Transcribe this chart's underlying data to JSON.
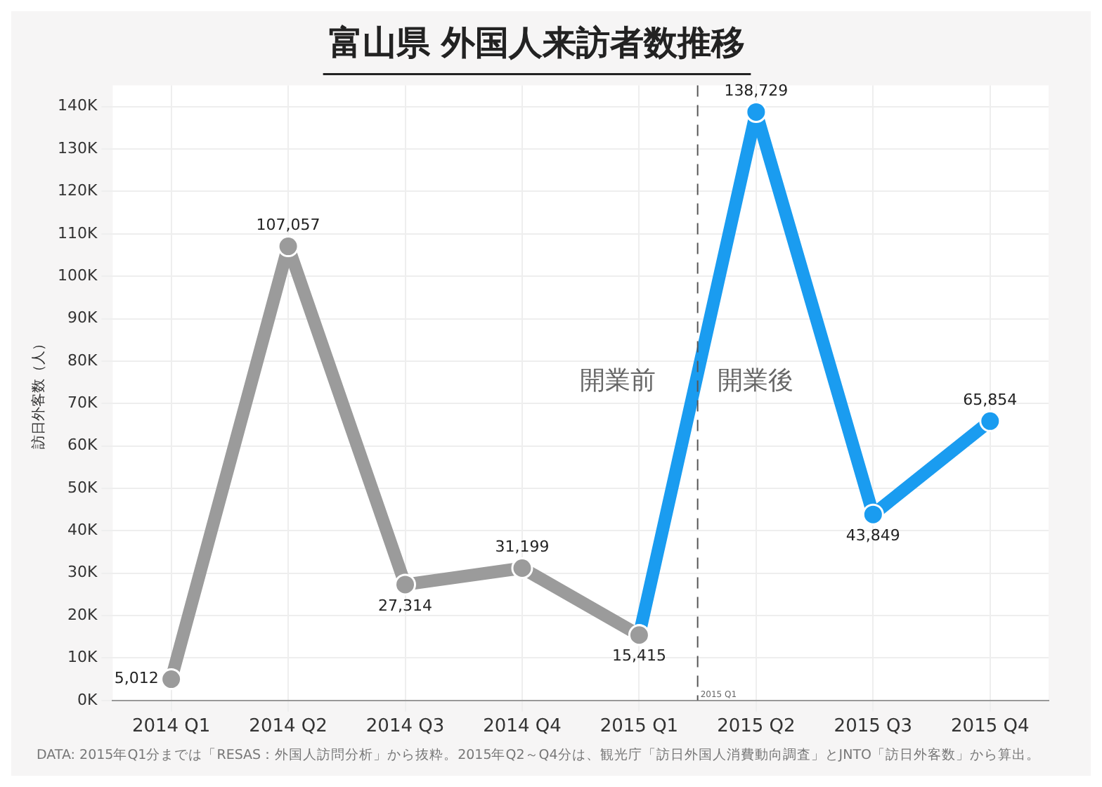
{
  "chart_data": {
    "type": "line",
    "title": "富山県 外国人来訪者数推移",
    "ylabel": "訪日外客数（人）",
    "categories": [
      "2014 Q1",
      "2014 Q2",
      "2014 Q3",
      "2014 Q4",
      "2015 Q1",
      "2015 Q2",
      "2015 Q3",
      "2015 Q4"
    ],
    "series": [
      {
        "color": "#9b9b9b",
        "values": [
          5012,
          107057,
          27314,
          31199,
          15415,
          null,
          null,
          null
        ],
        "value_labels": [
          "5,012",
          "107,057",
          "27,314",
          "31,199",
          "15,415",
          null,
          null,
          null
        ]
      },
      {
        "color": "#1a9cf0",
        "values": [
          null,
          null,
          null,
          null,
          15415,
          138729,
          43849,
          65854
        ],
        "value_labels": [
          null,
          null,
          null,
          null,
          null,
          "138,729",
          "43,849",
          "65,854"
        ]
      }
    ],
    "ylim": [
      0,
      145000
    ],
    "yticks": [
      {
        "value": 0,
        "label": "0K"
      },
      {
        "value": 10000,
        "label": "10K"
      },
      {
        "value": 20000,
        "label": "20K"
      },
      {
        "value": 30000,
        "label": "30K"
      },
      {
        "value": 40000,
        "label": "40K"
      },
      {
        "value": 50000,
        "label": "50K"
      },
      {
        "value": 60000,
        "label": "60K"
      },
      {
        "value": 70000,
        "label": "70K"
      },
      {
        "value": 80000,
        "label": "80K"
      },
      {
        "value": 90000,
        "label": "90K"
      },
      {
        "value": 100000,
        "label": "100K"
      },
      {
        "value": 110000,
        "label": "110K"
      },
      {
        "value": 120000,
        "label": "120K"
      },
      {
        "value": 130000,
        "label": "130K"
      },
      {
        "value": 140000,
        "label": "140K"
      }
    ],
    "ref_lines": [
      {
        "axis": "x",
        "value": "2015 Q1",
        "label": "2015 Q1",
        "line_style": "dashed",
        "color": "#555555"
      }
    ],
    "annotations": [
      "開業前",
      "開業後",
      "DATA: 2015年Q1分までは「RESAS：外国人訪問分析」から抜粋。2015年Q2～Q4分は、観光庁「訪日外国人消費動向調査」とJNTO「訪日外客数」から算出。"
    ],
    "grid": true,
    "marker": "circle",
    "line_style": "solid",
    "legend": false
  }
}
